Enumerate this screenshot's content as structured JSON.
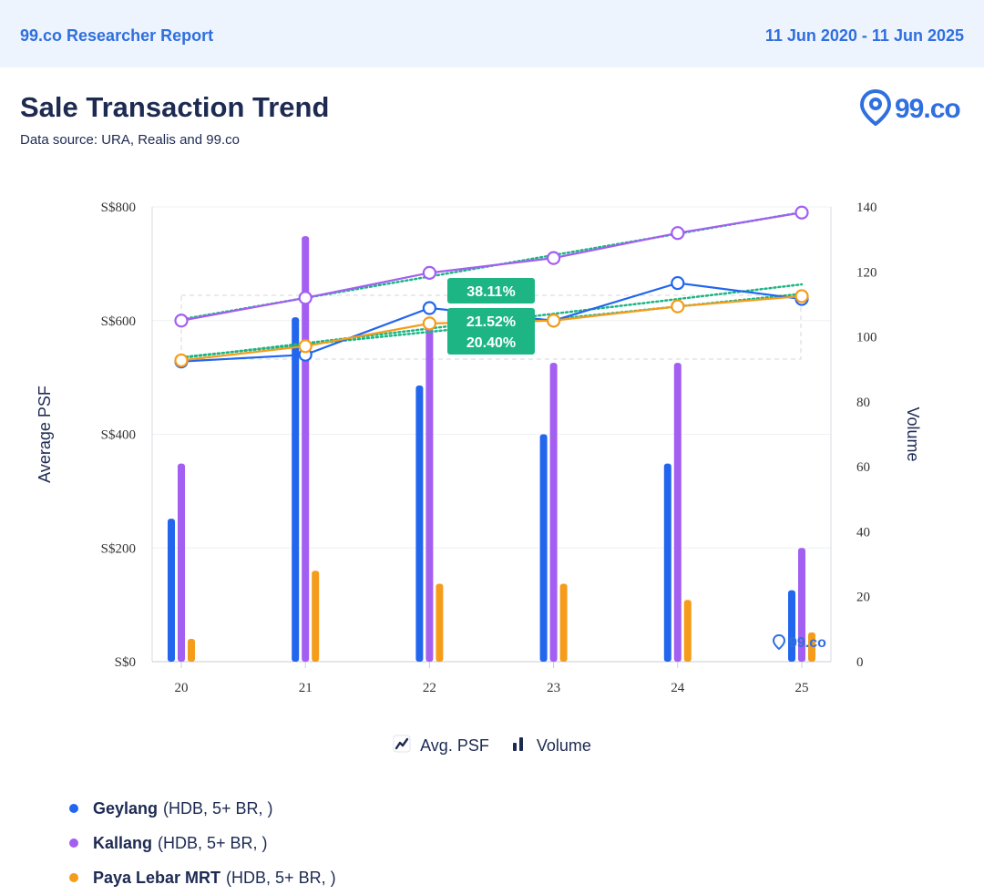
{
  "header": {
    "brand": "99.co Researcher Report",
    "date_range": "11 Jun 2020 - 11 Jun 2025"
  },
  "title": "Sale Transaction Trend",
  "subtitle": "Data source: URA, Realis and 99.co",
  "logo": {
    "text": "99.co",
    "icon": "map-pin-icon"
  },
  "watermark": "99.co",
  "toggles": [
    {
      "label": "Avg. PSF",
      "icon": "line-chart-icon"
    },
    {
      "label": "Volume",
      "icon": "bar-chart-icon"
    }
  ],
  "legend": [
    {
      "name": "Geylang",
      "detail": "(HDB, 5+ BR, )",
      "color": "#2266ee"
    },
    {
      "name": "Kallang",
      "detail": "(HDB, 5+ BR, )",
      "color": "#a35ef2"
    },
    {
      "name": "Paya Lebar MRT",
      "detail": "(HDB, 5+ BR, )",
      "color": "#f59c1a"
    }
  ],
  "chart_data": {
    "type": "bar+line",
    "categories": [
      "20",
      "21",
      "22",
      "23",
      "24",
      "25"
    ],
    "y_left": {
      "label": "Average PSF",
      "ticks": [
        "S$0",
        "S$200",
        "S$400",
        "S$600",
        "S$800"
      ],
      "range": [
        0,
        800
      ]
    },
    "y_right": {
      "label": "Volume",
      "ticks": [
        "0",
        "20",
        "40",
        "60",
        "80",
        "100",
        "120",
        "140"
      ],
      "range": [
        0,
        140
      ]
    },
    "trend_color": "#1db584",
    "series": [
      {
        "name": "Geylang",
        "color": "#2266ee",
        "avg_psf": [
          528,
          540,
          622,
          600,
          666,
          638
        ],
        "volume": [
          44,
          106,
          85,
          70,
          61,
          22
        ]
      },
      {
        "name": "Kallang",
        "color": "#a35ef2",
        "avg_psf": [
          600,
          640,
          684,
          710,
          754,
          790
        ],
        "volume": [
          61,
          131,
          105,
          92,
          92,
          35
        ]
      },
      {
        "name": "Paya Lebar MRT",
        "color": "#f59c1a",
        "avg_psf": [
          530,
          555,
          595,
          600,
          625,
          643
        ],
        "volume": [
          7,
          28,
          24,
          24,
          19,
          9
        ]
      }
    ],
    "growth_labels": [
      "38.11%",
      "21.52%",
      "20.40%"
    ]
  }
}
